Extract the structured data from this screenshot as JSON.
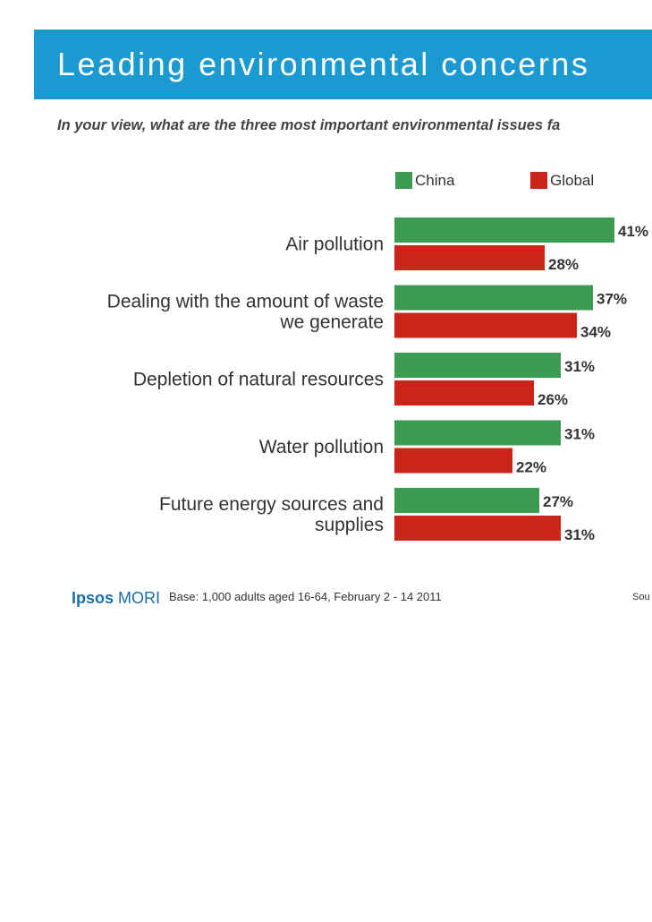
{
  "header": {
    "title": "Leading environmental concerns",
    "subtitle": "In your view, what are the three most important environmental issues fa"
  },
  "chart_data": {
    "type": "bar",
    "orientation": "horizontal",
    "legend_position": "top",
    "categories": [
      [
        "Air pollution"
      ],
      [
        "Dealing with the amount of waste",
        "we generate"
      ],
      [
        "Depletion of natural resources"
      ],
      [
        "Water pollution"
      ],
      [
        "Future energy sources and",
        "supplies"
      ]
    ],
    "series": [
      {
        "name": "China",
        "color": "#3d9a53",
        "values": [
          41,
          37,
          31,
          31,
          27
        ],
        "labels": [
          "41%",
          "37%",
          "31%",
          "31%",
          "27%"
        ]
      },
      {
        "name": "Global",
        "color": "#cc2418",
        "values": [
          28,
          34,
          26,
          22,
          31
        ],
        "labels": [
          "28%",
          "34%",
          "26%",
          "22%",
          "31%"
        ]
      }
    ],
    "value_suffix": "%"
  },
  "footer": {
    "logo_bold": "Ipsos",
    "logo_rest": "MORI",
    "base": "Base: 1,000 adults aged 16-64, February 2 - 14 2011",
    "source": "Sou"
  }
}
